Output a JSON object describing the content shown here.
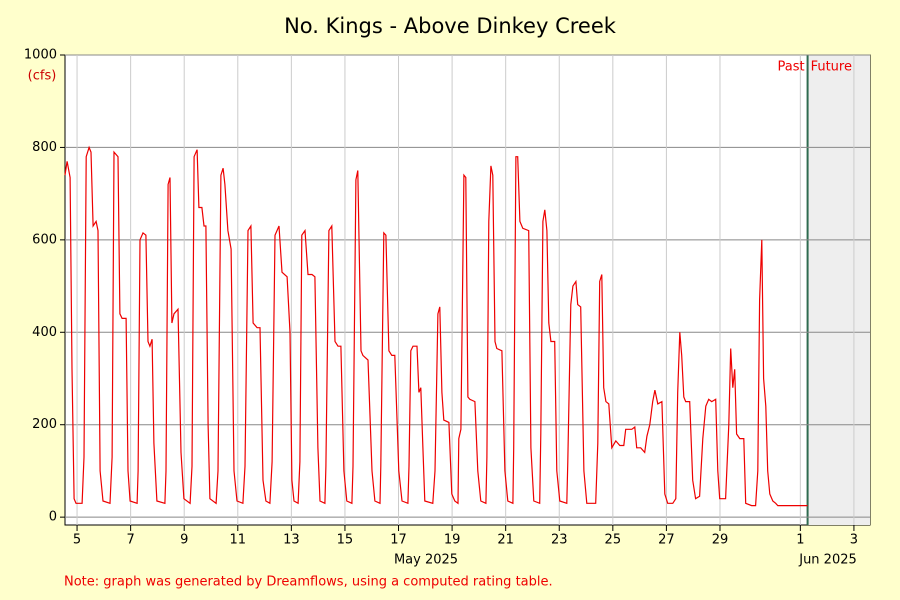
{
  "chart_data": {
    "type": "line",
    "title": "No. Kings - Above Dinkey Creek",
    "y_unit": "(cfs)",
    "note": "Note: graph was generated by Dreamflows, using a computed rating table.",
    "month_labels": [
      "May 2025",
      "Jun 2025"
    ],
    "past_label": "Past",
    "future_label": "Future",
    "divider": 32.27,
    "color": "#ee0000",
    "xlim": [
      4.55,
      34.6
    ],
    "xticks": [
      5,
      7,
      9,
      11,
      13,
      15,
      17,
      19,
      21,
      23,
      25,
      27,
      29,
      {
        "value": 32,
        "label": "1"
      },
      {
        "value": 34,
        "label": "3"
      }
    ],
    "ylim": [
      -17,
      1000
    ],
    "yticks": [
      0,
      200,
      400,
      600,
      800,
      1000
    ],
    "grid": true,
    "x": [
      4.55,
      4.63,
      4.74,
      4.81,
      4.89,
      4.96,
      5.19,
      5.26,
      5.34,
      5.45,
      5.52,
      5.6,
      5.71,
      5.78,
      5.86,
      5.97,
      6.23,
      6.31,
      6.38,
      6.53,
      6.6,
      6.68,
      6.83,
      6.9,
      6.98,
      7.24,
      7.28,
      7.35,
      7.46,
      7.57,
      7.65,
      7.72,
      7.8,
      7.87,
      7.98,
      8.28,
      8.32,
      8.4,
      8.47,
      8.54,
      8.62,
      8.77,
      8.88,
      8.99,
      9.22,
      9.29,
      9.37,
      9.48,
      9.55,
      9.66,
      9.74,
      9.81,
      9.89,
      9.96,
      10.19,
      10.26,
      10.37,
      10.45,
      10.52,
      10.63,
      10.75,
      10.86,
      10.97,
      11.19,
      11.27,
      11.38,
      11.49,
      11.57,
      11.72,
      11.83,
      11.94,
      12.05,
      12.2,
      12.28,
      12.39,
      12.54,
      12.65,
      12.84,
      12.95,
      13.02,
      13.1,
      13.25,
      13.32,
      13.39,
      13.51,
      13.62,
      13.77,
      13.88,
      13.99,
      14.07,
      14.25,
      14.29,
      14.4,
      14.51,
      14.63,
      14.74,
      14.85,
      14.96,
      15.07,
      15.26,
      15.3,
      15.41,
      15.48,
      15.6,
      15.67,
      15.86,
      16.01,
      16.12,
      16.31,
      16.34,
      16.45,
      16.53,
      16.64,
      16.75,
      16.86,
      17.01,
      17.13,
      17.35,
      17.39,
      17.46,
      17.54,
      17.69,
      17.76,
      17.83,
      17.91,
      17.98,
      18.28,
      18.36,
      18.47,
      18.54,
      18.62,
      18.69,
      18.88,
      18.99,
      19.1,
      19.22,
      19.25,
      19.33,
      19.44,
      19.51,
      19.59,
      19.66,
      19.85,
      19.96,
      20.07,
      20.26,
      20.3,
      20.37,
      20.45,
      20.52,
      20.6,
      20.67,
      20.86,
      20.97,
      21.08,
      21.27,
      21.3,
      21.38,
      21.45,
      21.53,
      21.64,
      21.86,
      21.94,
      22.05,
      22.27,
      22.31,
      22.39,
      22.46,
      22.54,
      22.61,
      22.69,
      22.83,
      22.91,
      23.02,
      23.28,
      23.32,
      23.43,
      23.51,
      23.62,
      23.69,
      23.8,
      23.92,
      24.03,
      24.36,
      24.44,
      24.51,
      24.59,
      24.66,
      24.74,
      24.85,
      24.96,
      25.11,
      25.26,
      25.41,
      25.48,
      25.71,
      25.82,
      25.89,
      26.04,
      26.19,
      26.27,
      26.38,
      26.49,
      26.57,
      26.68,
      26.83,
      26.94,
      27.05,
      27.24,
      27.35,
      27.42,
      27.5,
      27.57,
      27.65,
      27.72,
      27.87,
      27.98,
      28.09,
      28.24,
      28.36,
      28.47,
      28.58,
      28.69,
      28.84,
      28.92,
      28.99,
      29.21,
      29.33,
      29.4,
      29.48,
      29.55,
      29.62,
      29.74,
      29.89,
      29.96,
      30.18,
      30.33,
      30.41,
      30.48,
      30.56,
      30.63,
      30.71,
      30.78,
      30.86,
      30.97,
      31.08,
      31.16,
      32.27
    ],
    "values": [
      740,
      770,
      735,
      320,
      40,
      30,
      30,
      130,
      780,
      800,
      790,
      630,
      640,
      620,
      100,
      35,
      30,
      130,
      790,
      780,
      440,
      430,
      430,
      100,
      35,
      30,
      100,
      600,
      615,
      610,
      380,
      370,
      385,
      160,
      35,
      30,
      100,
      720,
      735,
      420,
      440,
      450,
      140,
      40,
      30,
      110,
      780,
      795,
      670,
      670,
      630,
      630,
      200,
      40,
      30,
      100,
      740,
      755,
      720,
      620,
      580,
      100,
      35,
      30,
      110,
      620,
      630,
      420,
      410,
      410,
      80,
      35,
      30,
      120,
      610,
      630,
      530,
      520,
      400,
      80,
      35,
      30,
      120,
      610,
      620,
      525,
      525,
      520,
      150,
      35,
      30,
      110,
      620,
      630,
      380,
      370,
      370,
      100,
      35,
      30,
      110,
      730,
      750,
      360,
      350,
      340,
      100,
      35,
      30,
      110,
      615,
      610,
      360,
      350,
      350,
      100,
      35,
      30,
      110,
      360,
      370,
      370,
      270,
      280,
      150,
      35,
      30,
      100,
      440,
      455,
      270,
      210,
      205,
      50,
      35,
      30,
      170,
      190,
      740,
      735,
      260,
      255,
      250,
      100,
      35,
      30,
      130,
      640,
      760,
      740,
      380,
      365,
      360,
      100,
      35,
      30,
      150,
      780,
      780,
      640,
      625,
      620,
      150,
      35,
      30,
      180,
      640,
      665,
      620,
      420,
      380,
      380,
      100,
      35,
      30,
      120,
      460,
      500,
      510,
      460,
      455,
      100,
      30,
      30,
      160,
      510,
      525,
      280,
      250,
      245,
      150,
      165,
      155,
      155,
      190,
      190,
      195,
      150,
      150,
      140,
      175,
      200,
      250,
      275,
      245,
      250,
      50,
      30,
      30,
      40,
      270,
      400,
      350,
      260,
      250,
      250,
      80,
      40,
      45,
      170,
      240,
      255,
      250,
      255,
      100,
      40,
      40,
      200,
      365,
      280,
      320,
      180,
      170,
      170,
      30,
      25,
      25,
      100,
      470,
      600,
      300,
      240,
      100,
      50,
      35,
      30,
      25,
      25
    ]
  }
}
